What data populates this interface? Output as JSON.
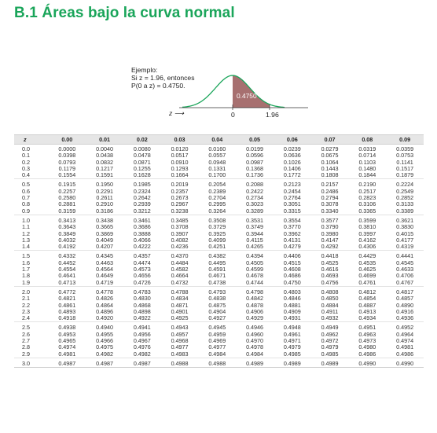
{
  "title": "B.1 Áreas bajo la curva normal",
  "example": {
    "line1": "Ejemplo:",
    "line2": "Si z = 1.96, entonces",
    "line3": "P(0 a z) = 0.4750.",
    "area_label": "0.4750",
    "axis_label": "z ⟶",
    "tick_zero": "0",
    "tick_z": "1.96",
    "shade_color": "#a77070",
    "curve_color": "#1aa55a"
  },
  "table": {
    "headers": [
      "z",
      "0.00",
      "0.01",
      "0.02",
      "0.03",
      "0.04",
      "0.05",
      "0.06",
      "0.07",
      "0.08",
      "0.09"
    ],
    "groups": [
      [
        [
          "0.0",
          "0.0000",
          "0.0040",
          "0.0080",
          "0.0120",
          "0.0160",
          "0.0199",
          "0.0239",
          "0.0279",
          "0.0319",
          "0.0359"
        ],
        [
          "0.1",
          "0.0398",
          "0.0438",
          "0.0478",
          "0.0517",
          "0.0557",
          "0.0596",
          "0.0636",
          "0.0675",
          "0.0714",
          "0.0753"
        ],
        [
          "0.2",
          "0.0793",
          "0.0832",
          "0.0871",
          "0.0910",
          "0.0948",
          "0.0987",
          "0.1026",
          "0.1064",
          "0.1103",
          "0.1141"
        ],
        [
          "0.3",
          "0.1179",
          "0.1217",
          "0.1255",
          "0.1293",
          "0.1331",
          "0.1368",
          "0.1406",
          "0.1443",
          "0.1480",
          "0.1517"
        ],
        [
          "0.4",
          "0.1554",
          "0.1591",
          "0.1628",
          "0.1664",
          "0.1700",
          "0.1736",
          "0.1772",
          "0.1808",
          "0.1844",
          "0.1879"
        ]
      ],
      [
        [
          "0.5",
          "0.1915",
          "0.1950",
          "0.1985",
          "0.2019",
          "0.2054",
          "0.2088",
          "0.2123",
          "0.2157",
          "0.2190",
          "0.2224"
        ],
        [
          "0.6",
          "0.2257",
          "0.2291",
          "0.2324",
          "0.2357",
          "0.2389",
          "0.2422",
          "0.2454",
          "0.2486",
          "0.2517",
          "0.2549"
        ],
        [
          "0.7",
          "0.2580",
          "0.2611",
          "0.2642",
          "0.2673",
          "0.2704",
          "0.2734",
          "0.2764",
          "0.2794",
          "0.2823",
          "0.2852"
        ],
        [
          "0.8",
          "0.2881",
          "0.2910",
          "0.2939",
          "0.2967",
          "0.2995",
          "0.3023",
          "0.3051",
          "0.3078",
          "0.3106",
          "0.3133"
        ],
        [
          "0.9",
          "0.3159",
          "0.3186",
          "0.3212",
          "0.3238",
          "0.3264",
          "0.3289",
          "0.3315",
          "0.3340",
          "0.3365",
          "0.3389"
        ]
      ],
      [
        [
          "1.0",
          "0.3413",
          "0.3438",
          "0.3461",
          "0.3485",
          "0.3508",
          "0.3531",
          "0.3554",
          "0.3577",
          "0.3599",
          "0.3621"
        ],
        [
          "1.1",
          "0.3643",
          "0.3665",
          "0.3686",
          "0.3708",
          "0.3729",
          "0.3749",
          "0.3770",
          "0.3790",
          "0.3810",
          "0.3830"
        ],
        [
          "1.2",
          "0.3849",
          "0.3869",
          "0.3888",
          "0.3907",
          "0.3925",
          "0.3944",
          "0.3962",
          "0.3980",
          "0.3997",
          "0.4015"
        ],
        [
          "1.3",
          "0.4032",
          "0.4049",
          "0.4066",
          "0.4082",
          "0.4099",
          "0.4115",
          "0.4131",
          "0.4147",
          "0.4162",
          "0.4177"
        ],
        [
          "1.4",
          "0.4192",
          "0.4207",
          "0.4222",
          "0.4236",
          "0.4251",
          "0.4265",
          "0.4279",
          "0.4292",
          "0.4306",
          "0.4319"
        ]
      ],
      [
        [
          "1.5",
          "0.4332",
          "0.4345",
          "0.4357",
          "0.4370",
          "0.4382",
          "0.4394",
          "0.4406",
          "0.4418",
          "0.4429",
          "0.4441"
        ],
        [
          "1.6",
          "0.4452",
          "0.4463",
          "0.4474",
          "0.4484",
          "0.4495",
          "0.4505",
          "0.4515",
          "0.4525",
          "0.4535",
          "0.4545"
        ],
        [
          "1.7",
          "0.4554",
          "0.4564",
          "0.4573",
          "0.4582",
          "0.4591",
          "0.4599",
          "0.4608",
          "0.4616",
          "0.4625",
          "0.4633"
        ],
        [
          "1.8",
          "0.4641",
          "0.4649",
          "0.4656",
          "0.4664",
          "0.4671",
          "0.4678",
          "0.4686",
          "0.4693",
          "0.4699",
          "0.4706"
        ],
        [
          "1.9",
          "0.4713",
          "0.4719",
          "0.4726",
          "0.4732",
          "0.4738",
          "0.4744",
          "0.4750",
          "0.4756",
          "0.4761",
          "0.4767"
        ]
      ],
      [
        [
          "2.0",
          "0.4772",
          "0.4778",
          "0.4783",
          "0.4788",
          "0.4793",
          "0.4798",
          "0.4803",
          "0.4808",
          "0.4812",
          "0.4817"
        ],
        [
          "2.1",
          "0.4821",
          "0.4826",
          "0.4830",
          "0.4834",
          "0.4838",
          "0.4842",
          "0.4846",
          "0.4850",
          "0.4854",
          "0.4857"
        ],
        [
          "2.2",
          "0.4861",
          "0.4864",
          "0.4868",
          "0.4871",
          "0.4875",
          "0.4878",
          "0.4881",
          "0.4884",
          "0.4887",
          "0.4890"
        ],
        [
          "2.3",
          "0.4893",
          "0.4896",
          "0.4898",
          "0.4901",
          "0.4904",
          "0.4906",
          "0.4909",
          "0.4911",
          "0.4913",
          "0.4916"
        ],
        [
          "2.4",
          "0.4918",
          "0.4920",
          "0.4922",
          "0.4925",
          "0.4927",
          "0.4929",
          "0.4931",
          "0.4932",
          "0.4934",
          "0.4936"
        ]
      ],
      [
        [
          "2.5",
          "0.4938",
          "0.4940",
          "0.4941",
          "0.4943",
          "0.4945",
          "0.4946",
          "0.4948",
          "0.4949",
          "0.4951",
          "0.4952"
        ],
        [
          "2.6",
          "0.4953",
          "0.4955",
          "0.4956",
          "0.4957",
          "0.4959",
          "0.4960",
          "0.4961",
          "0.4962",
          "0.4963",
          "0.4964"
        ],
        [
          "2.7",
          "0.4965",
          "0.4966",
          "0.4967",
          "0.4968",
          "0.4969",
          "0.4970",
          "0.4971",
          "0.4972",
          "0.4973",
          "0.4974"
        ],
        [
          "2.8",
          "0.4974",
          "0.4975",
          "0.4976",
          "0.4977",
          "0.4977",
          "0.4978",
          "0.4979",
          "0.4979",
          "0.4980",
          "0.4981"
        ],
        [
          "2.9",
          "0.4981",
          "0.4982",
          "0.4982",
          "0.4983",
          "0.4984",
          "0.4984",
          "0.4985",
          "0.4985",
          "0.4986",
          "0.4986"
        ]
      ],
      [
        [
          "3.0",
          "0.4987",
          "0.4987",
          "0.4987",
          "0.4988",
          "0.4988",
          "0.4989",
          "0.4989",
          "0.4989",
          "0.4990",
          "0.4990"
        ]
      ]
    ]
  }
}
